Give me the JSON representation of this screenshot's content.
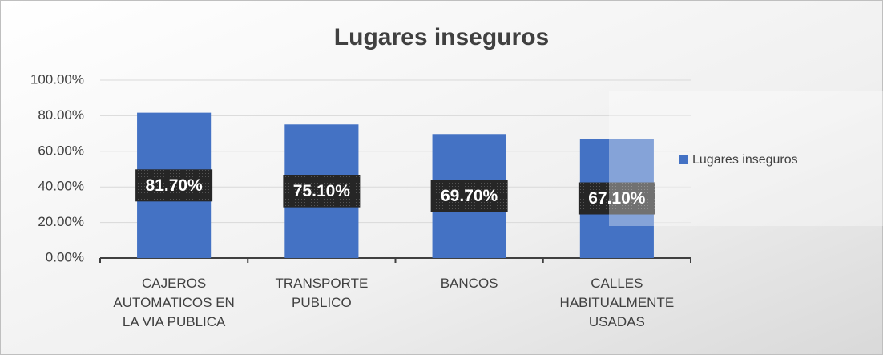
{
  "chart_data": {
    "type": "bar",
    "title": "Lugares inseguros",
    "categories": [
      "CAJEROS AUTOMATICOS EN LA VIA PUBLICA",
      "TRANSPORTE PUBLICO",
      "BANCOS",
      "CALLES HABITUALMENTE USADAS"
    ],
    "series": [
      {
        "name": "Lugares inseguros",
        "color": "#4472c4",
        "values": [
          81.7,
          75.1,
          69.7,
          67.1
        ],
        "value_labels": [
          "81.70%",
          "75.10%",
          "69.70%",
          "67.10%"
        ]
      }
    ],
    "ylim": [
      0,
      100
    ],
    "yticks": [
      {
        "value": 0,
        "label": "0.00%"
      },
      {
        "value": 20,
        "label": "20.00%"
      },
      {
        "value": 40,
        "label": "40.00%"
      },
      {
        "value": 60,
        "label": "60.00%"
      },
      {
        "value": 80,
        "label": "80.00%"
      },
      {
        "value": 100,
        "label": "100.00%"
      }
    ],
    "grid": true,
    "legend": "right"
  }
}
